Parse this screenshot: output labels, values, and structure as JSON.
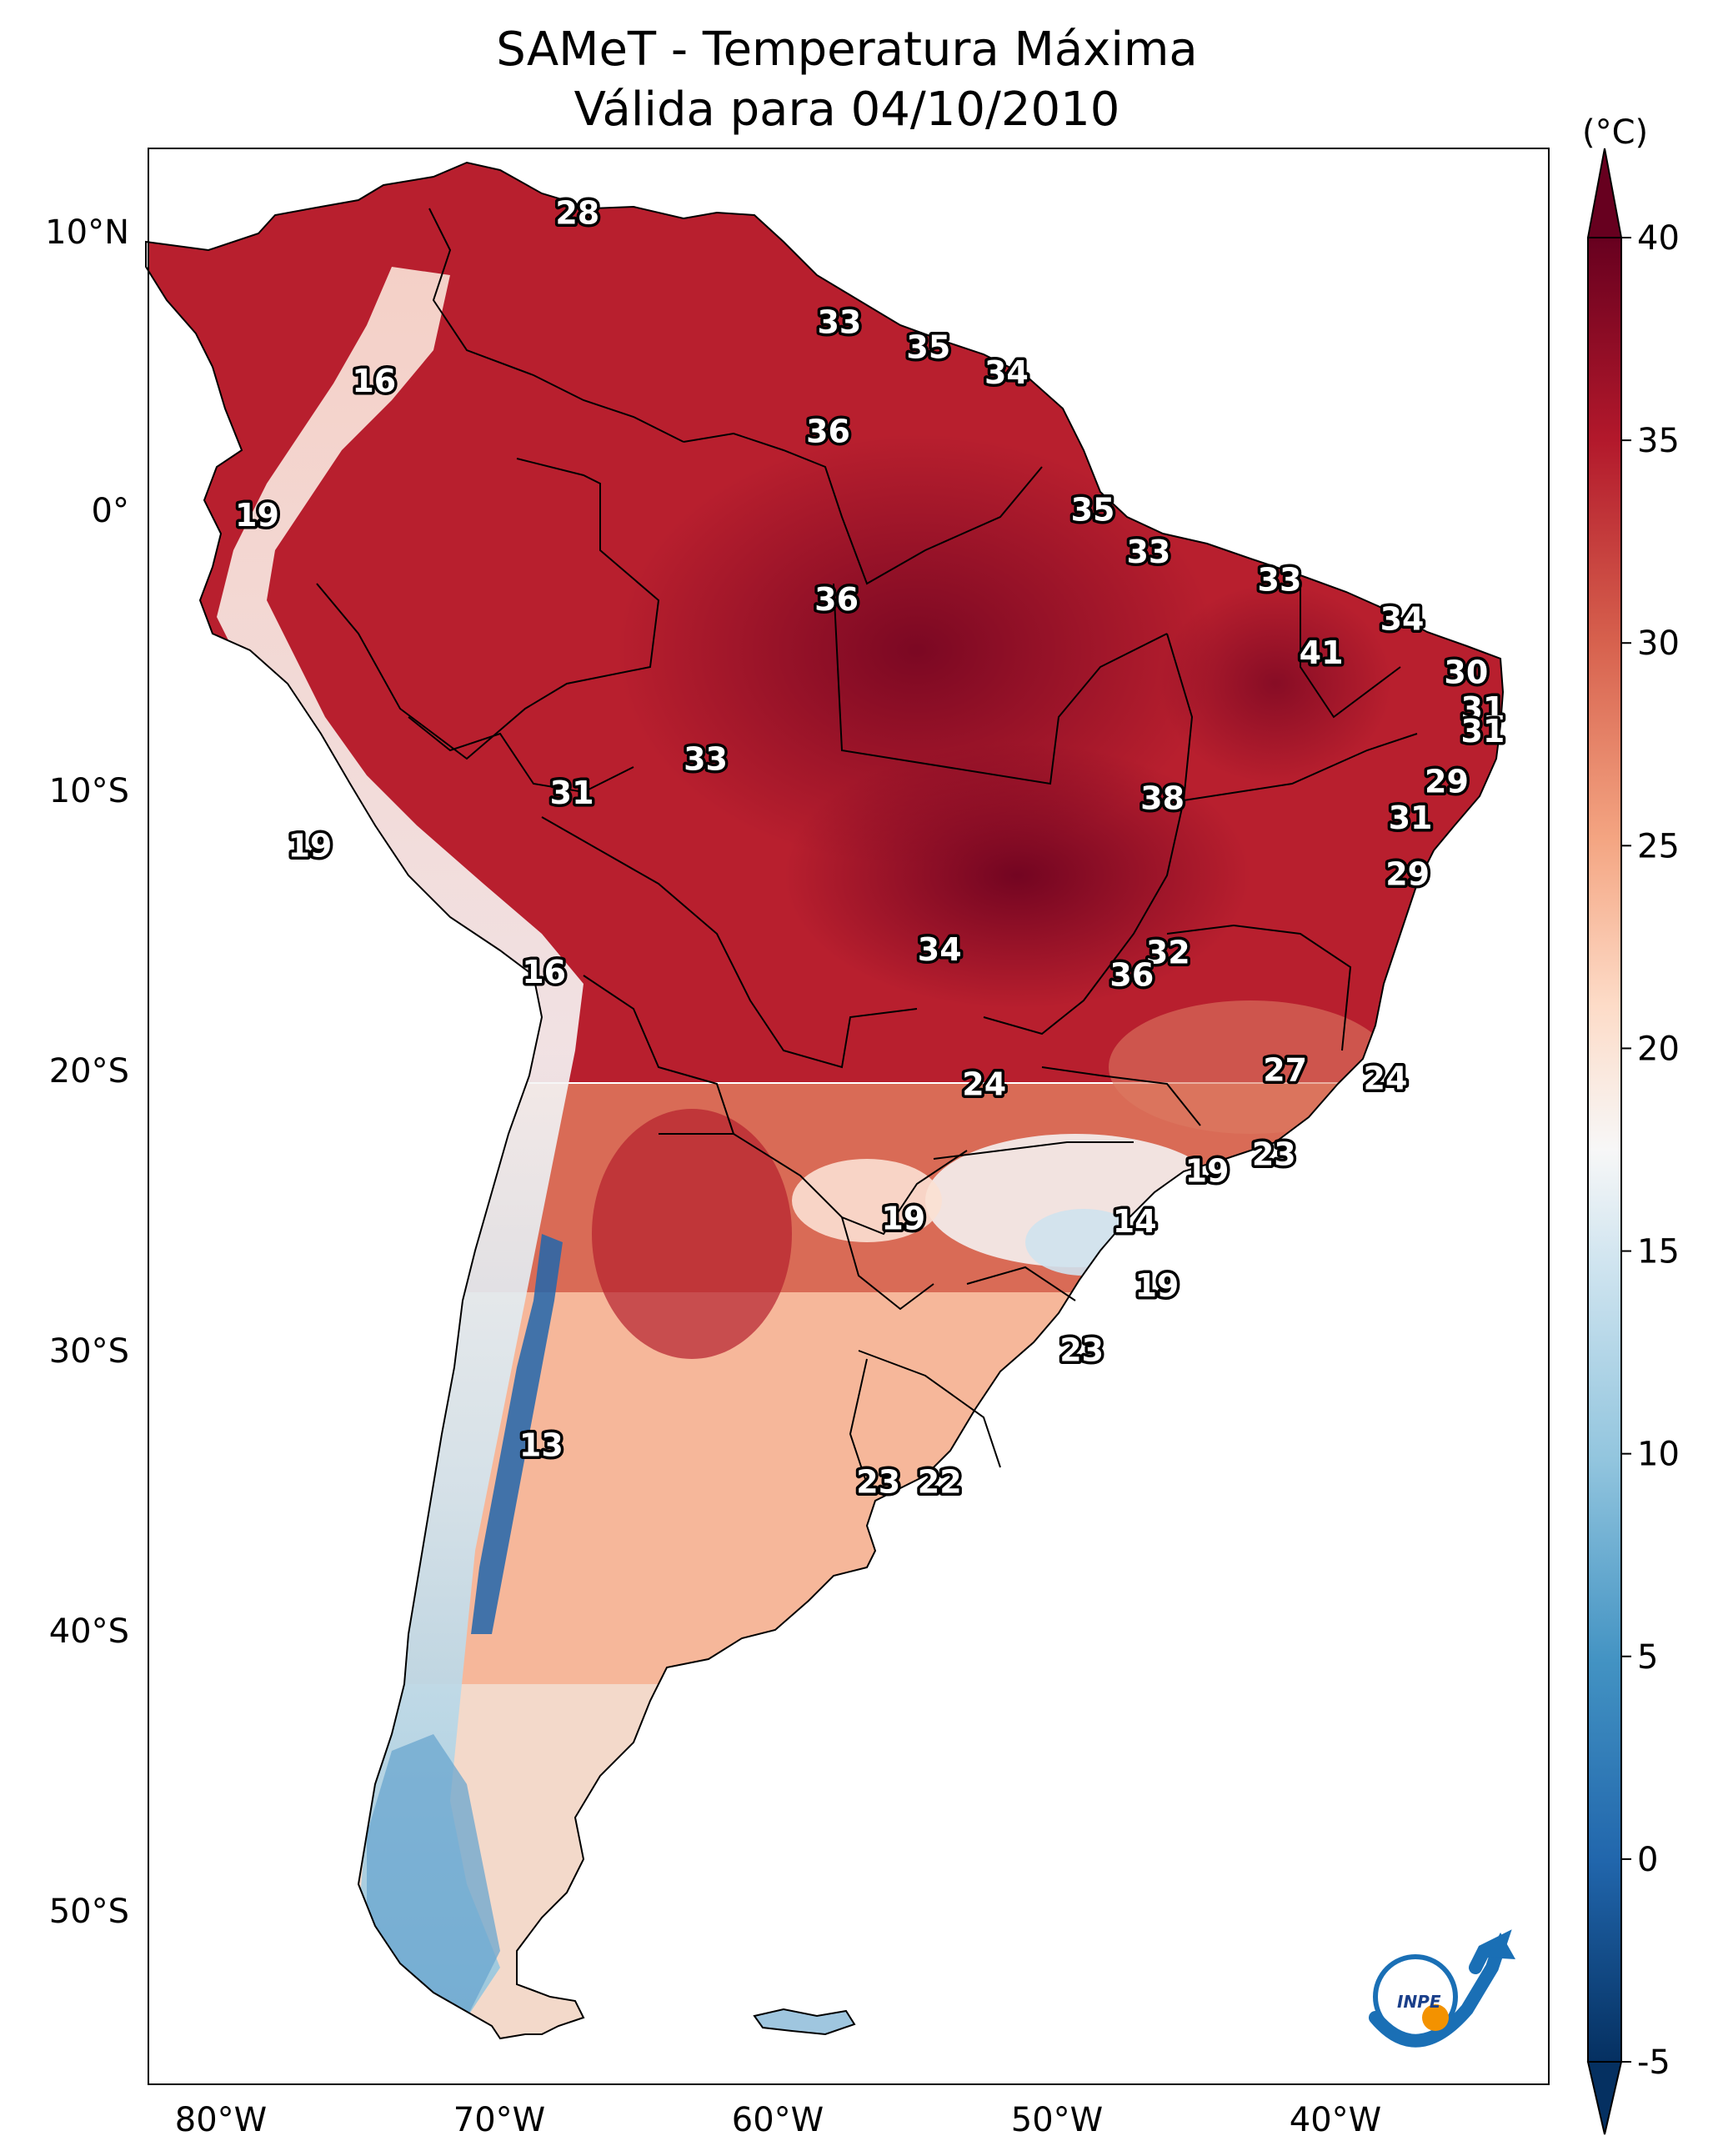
{
  "title_line1": "SAMeT - Temperatura Máxima",
  "title_line2": "Válida para 04/10/2010",
  "colorbar": {
    "unit": "(°C)",
    "ticks": [
      "40",
      "35",
      "30",
      "25",
      "20",
      "15",
      "10",
      "5",
      "0",
      "-5"
    ]
  },
  "axes": {
    "lat_ticks": [
      "10°N",
      "0°",
      "10°S",
      "20°S",
      "30°S",
      "40°S",
      "50°S"
    ],
    "lon_ticks": [
      "80°W",
      "70°W",
      "60°W",
      "50°W",
      "40°W"
    ]
  },
  "logo_text": "INPE",
  "colors": {
    "hot_dark": "#67001f",
    "hot": "#b2182b",
    "warm": "#d6604d",
    "mild": "#f4a582",
    "pale": "#fddbc7",
    "neutral": "#f7f7f7",
    "cool": "#d1e5f0",
    "cold": "#92c5de",
    "colder": "#4393c3",
    "coldest": "#2166ac",
    "deep": "#053061"
  },
  "station_labels": [
    {
      "value": "28",
      "lon": -67.2,
      "lat": 10.6
    },
    {
      "value": "16",
      "lon": -74.5,
      "lat": 4.6
    },
    {
      "value": "33",
      "lon": -57.8,
      "lat": 6.7
    },
    {
      "value": "35",
      "lon": -54.6,
      "lat": 5.8
    },
    {
      "value": "34",
      "lon": -51.8,
      "lat": 4.9
    },
    {
      "value": "36",
      "lon": -58.2,
      "lat": 2.8
    },
    {
      "value": "19",
      "lon": -78.7,
      "lat": -0.2
    },
    {
      "value": "35",
      "lon": -48.7,
      "lat": 0.0
    },
    {
      "value": "33",
      "lon": -46.7,
      "lat": -1.5
    },
    {
      "value": "36",
      "lon": -57.9,
      "lat": -3.2
    },
    {
      "value": "33",
      "lon": -42.0,
      "lat": -2.5
    },
    {
      "value": "34",
      "lon": -37.6,
      "lat": -3.9
    },
    {
      "value": "41",
      "lon": -40.5,
      "lat": -5.1
    },
    {
      "value": "30",
      "lon": -35.3,
      "lat": -5.8
    },
    {
      "value": "31",
      "lon": -34.7,
      "lat": -7.1
    },
    {
      "value": "31",
      "lon": -34.7,
      "lat": -7.9
    },
    {
      "value": "29",
      "lon": -36.0,
      "lat": -9.7
    },
    {
      "value": "33",
      "lon": -62.6,
      "lat": -8.9
    },
    {
      "value": "31",
      "lon": -67.4,
      "lat": -10.1
    },
    {
      "value": "38",
      "lon": -46.2,
      "lat": -10.3
    },
    {
      "value": "31",
      "lon": -37.3,
      "lat": -11.0
    },
    {
      "value": "19",
      "lon": -76.8,
      "lat": -12.0
    },
    {
      "value": "29",
      "lon": -37.4,
      "lat": -13.0
    },
    {
      "value": "34",
      "lon": -54.2,
      "lat": -15.7
    },
    {
      "value": "32",
      "lon": -46.0,
      "lat": -15.8
    },
    {
      "value": "36",
      "lon": -47.3,
      "lat": -16.6
    },
    {
      "value": "16",
      "lon": -68.4,
      "lat": -16.5
    },
    {
      "value": "27",
      "lon": -41.8,
      "lat": -20.0
    },
    {
      "value": "24",
      "lon": -52.6,
      "lat": -20.5
    },
    {
      "value": "24",
      "lon": -38.2,
      "lat": -20.3
    },
    {
      "value": "23",
      "lon": -42.2,
      "lat": -23.0
    },
    {
      "value": "19",
      "lon": -44.6,
      "lat": -23.6
    },
    {
      "value": "19",
      "lon": -55.5,
      "lat": -25.3
    },
    {
      "value": "14",
      "lon": -47.2,
      "lat": -25.4
    },
    {
      "value": "19",
      "lon": -46.4,
      "lat": -27.7
    },
    {
      "value": "23",
      "lon": -49.1,
      "lat": -30.0
    },
    {
      "value": "13",
      "lon": -68.5,
      "lat": -33.4
    },
    {
      "value": "23",
      "lon": -56.4,
      "lat": -34.7
    },
    {
      "value": "22",
      "lon": -54.2,
      "lat": -34.7
    }
  ]
}
